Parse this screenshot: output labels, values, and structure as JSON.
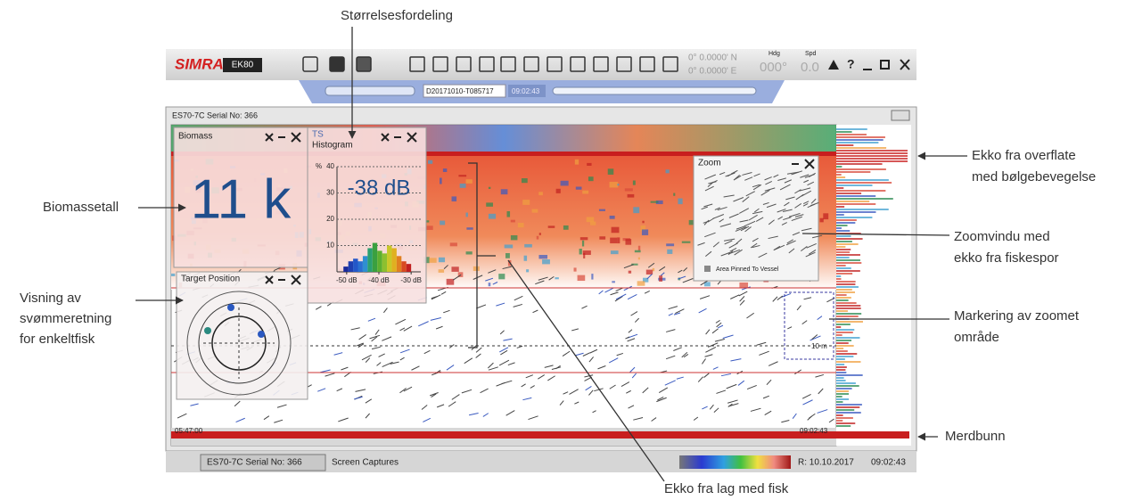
{
  "annotations": {
    "size_distribution": "Størrelsesfordeling",
    "biomass": "Biomassetall",
    "swim_direction": [
      "Visning av",
      "svømmeretning",
      "for enkeltfisk"
    ],
    "surface_echo": [
      "Ekko fra overflate",
      "med bølgebevegelse"
    ],
    "zoom_window": [
      "Zoomvindu med",
      "ekko fra fiskespor"
    ],
    "zoom_marking": [
      "Markering av zoomet",
      "område"
    ],
    "pen_bottom": "Merdbunn",
    "fish_layer": "Ekko fra lag med fisk"
  },
  "toolbar": {
    "brand": "SIMRAD",
    "product": "EK80",
    "latitude": "0° 0.0000' N",
    "longitude": "0° 0.0000' E",
    "heading_label": "Hdg",
    "heading": "000°",
    "speed_label": "Spd",
    "speed": "0.0",
    "help": "?"
  },
  "replay": {
    "file": "D20171010-T085717",
    "time": "09:02:43"
  },
  "window": {
    "title": "ES70-7C Serial No: 366"
  },
  "biomass_panel": {
    "title": "Biomass",
    "value": "11 k"
  },
  "ts_panel": {
    "title": [
      "TS",
      "Histogram"
    ],
    "unit": "%",
    "current": "-38 dB",
    "histogram": {
      "type": "histogram",
      "bins": [
        -51,
        -49.5,
        -48,
        -46.5,
        -45,
        -43.5,
        -42,
        -40.5,
        -39,
        -37.5,
        -36,
        -34.5,
        -33,
        -31.5,
        -30
      ],
      "values": [
        2,
        4,
        5,
        4,
        6,
        9,
        11,
        8,
        7,
        10,
        9,
        6,
        4,
        3
      ],
      "colors": [
        "#1a2a9a",
        "#1f3fb0",
        "#2457c8",
        "#2a6fd0",
        "#2f8fd0",
        "#2aa070",
        "#3aa040",
        "#5cb030",
        "#8cc030",
        "#c8c828",
        "#e0b020",
        "#e08020",
        "#d84a20",
        "#c02020"
      ],
      "xlim": [
        -53,
        -27
      ],
      "ylim": [
        0,
        40
      ],
      "yticks": [
        10,
        20,
        30,
        40
      ],
      "xticks": [
        {
          "value": -50,
          "label": "-50 dB"
        },
        {
          "value": -40,
          "label": "-40 dB"
        },
        {
          "value": -30,
          "label": "-30 dB"
        }
      ]
    }
  },
  "target_panel": {
    "title": "Target Position"
  },
  "zoom_panel": {
    "title": "Zoom",
    "pinned": "Area Pinned To Vessel"
  },
  "echogram": {
    "start_time": "05:47:00",
    "end_time": "09:02:43",
    "depth_label": "10 m"
  },
  "status_bar": {
    "tabs": [
      "ES70-7C Serial No: 366",
      "Screen Captures"
    ],
    "date": "R: 10.10.2017",
    "time": "09:02:43"
  }
}
